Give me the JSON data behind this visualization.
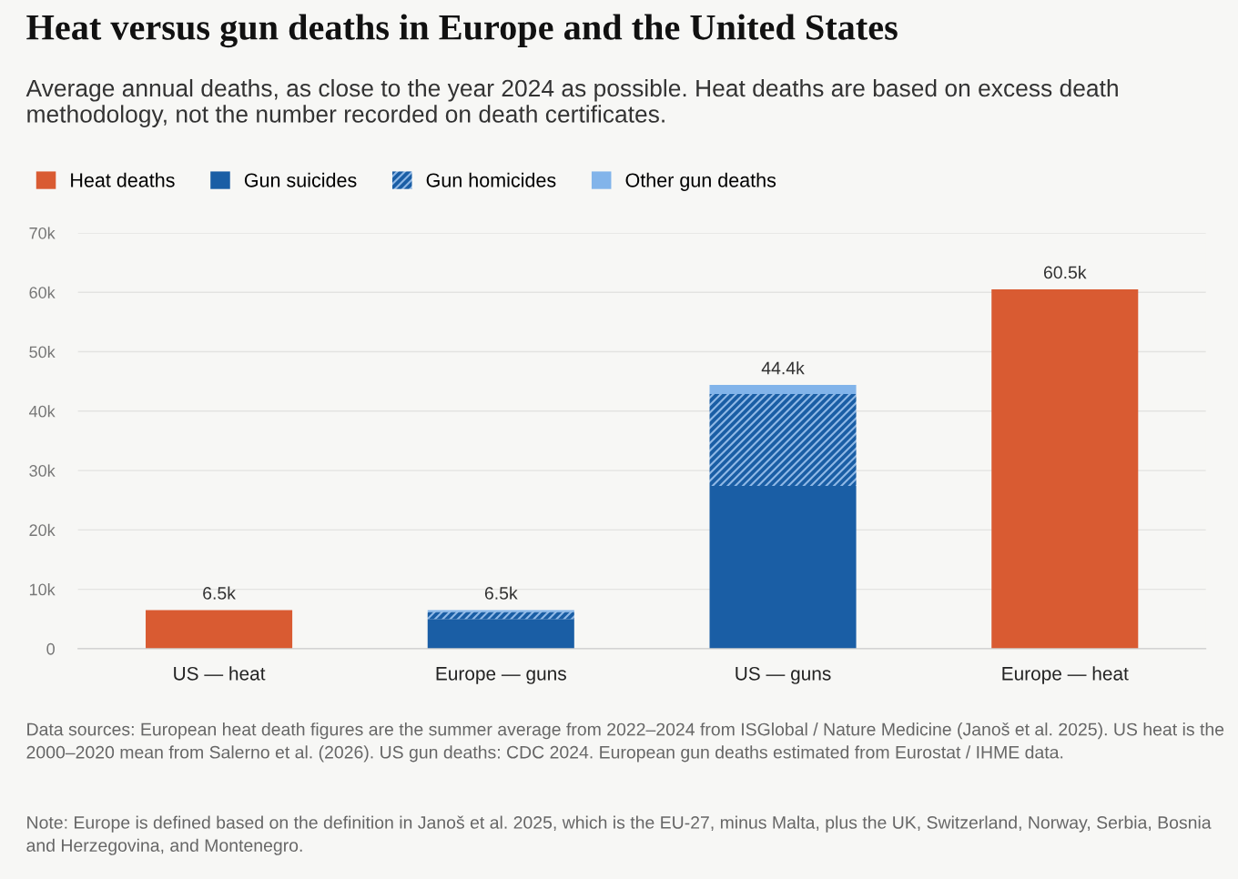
{
  "chart_data": {
    "type": "bar",
    "stacked": true,
    "title": "Heat versus gun deaths in Europe and the United States",
    "subtitle": "Average annual deaths, as close to the year 2024 as possible. Heat deaths are based on excess death methodology, not the number recorded on death certificates.",
    "categories": [
      "US — heat",
      "Europe — guns",
      "US — guns",
      "Europe — heat"
    ],
    "series": [
      {
        "name": "Heat deaths",
        "color": "#d95b32",
        "values": [
          6.5,
          null,
          null,
          60.5
        ]
      },
      {
        "name": "Gun suicides",
        "color": "#1a5ea5",
        "values": [
          null,
          5.0,
          27.4,
          null
        ]
      },
      {
        "name": "Gun homicides",
        "color": "#1a5ea5",
        "values": [
          null,
          1.2,
          15.5,
          null
        ]
      },
      {
        "name": "Other gun deaths",
        "color": "#82b4ea",
        "values": [
          null,
          0.3,
          1.5,
          null
        ]
      }
    ],
    "totals": [
      "6.5k",
      "6.5k",
      "44.4k",
      "60.5k"
    ],
    "ylim": [
      0,
      70
    ],
    "yticks": [
      {
        "value": 0,
        "label": "0"
      },
      {
        "value": 10,
        "label": "10k"
      },
      {
        "value": 20,
        "label": "20k"
      },
      {
        "value": 30,
        "label": "30k"
      },
      {
        "value": 40,
        "label": "40k"
      },
      {
        "value": 50,
        "label": "50k"
      },
      {
        "value": 60,
        "label": "60k"
      },
      {
        "value": 70,
        "label": "70k"
      }
    ],
    "grid": "y",
    "legend": "top left",
    "annotations": [
      "Data sources: European heat death figures are the summer average from 2022–2024 from ISGlobal / Nature Medicine (Janoš et al. 2025). US heat is the 2000–2020 mean from Salerno et al. (2026). US gun deaths: CDC 2024. European gun deaths estimated from Eurostat / IHME data.",
      "Note: Europe is defined based on the definition in Janoš et al. 2025, which is the EU-27, minus Malta, plus the UK, Switzerland, Norway, Serbia, Bosnia and Herzegovina, and Montenegro."
    ]
  }
}
